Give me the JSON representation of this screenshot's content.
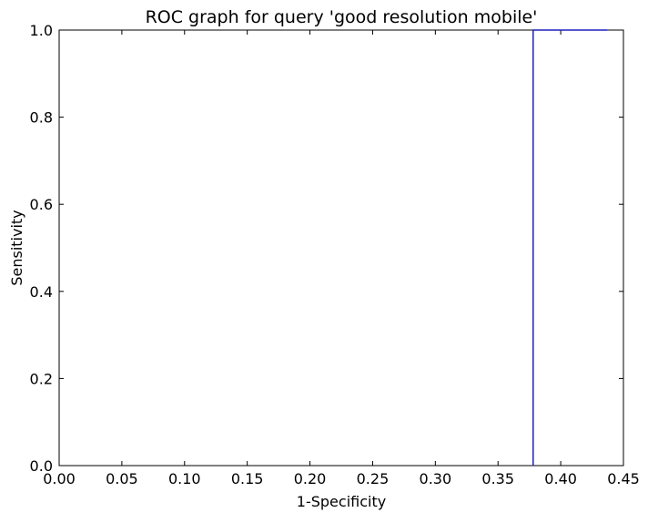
{
  "chart_data": {
    "type": "line",
    "title": "ROC graph for query 'good resolution mobile'",
    "xlabel": "1-Specificity",
    "ylabel": "Sensitivity",
    "xlim": [
      0.0,
      0.45
    ],
    "ylim": [
      0.0,
      1.0
    ],
    "xticks": [
      "0.00",
      "0.05",
      "0.10",
      "0.15",
      "0.20",
      "0.25",
      "0.30",
      "0.35",
      "0.40",
      "0.45"
    ],
    "yticks": [
      "0.0",
      "0.2",
      "0.4",
      "0.6",
      "0.8",
      "1.0"
    ],
    "grid": false,
    "legend": "none",
    "series": [
      {
        "color": "#1f1fbf",
        "x": [
          0.378,
          0.378,
          0.437
        ],
        "y": [
          0.0,
          1.0,
          1.0
        ]
      }
    ]
  }
}
